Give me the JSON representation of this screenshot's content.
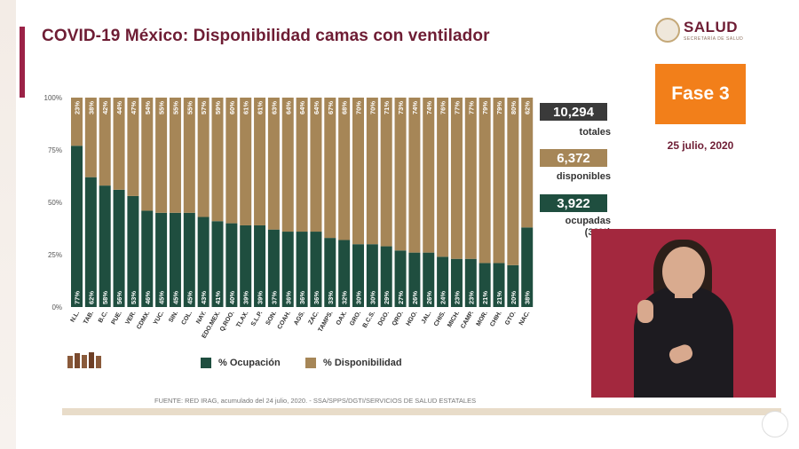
{
  "header": {
    "title": "COVID-19 México: Disponibilidad camas con ventilador"
  },
  "logo": {
    "name": "SALUD",
    "subtitle": "SECRETARÍA DE SALUD",
    "icon": "government-seal-icon"
  },
  "fase": {
    "label": "Fase 3",
    "color": "#f27f1a"
  },
  "date": "25 julio, 2020",
  "stats": {
    "totales": {
      "value": "10,294",
      "label": "totales",
      "color": "#3a3a3a"
    },
    "disponibles": {
      "value": "6,372",
      "label": "disponibles",
      "color": "#a68657"
    },
    "ocupadas": {
      "value": "3,922",
      "label": "ocupadas",
      "pct": "(38%)",
      "color": "#1f4e3f"
    }
  },
  "footer": {
    "source": "FUENTE: RED IRAG, acumulado del 24 julio, 2020.  -  SSA/SPPS/DGTI/SERVICIOS DE SALUD ESTATALES"
  },
  "colors": {
    "ocupacion": "#1f4e3f",
    "disponibilidad": "#a68657",
    "accent": "#6e1d34"
  },
  "chart_data": {
    "type": "bar",
    "stacked": true,
    "categories": [
      "N.L.",
      "TAB.",
      "B.C.",
      "PUE.",
      "VER.",
      "CDMX.",
      "YUC.",
      "SIN.",
      "COL.",
      "NAY.",
      "EDO.MEX.",
      "Q.ROO.",
      "TLAX.",
      "S.L.P.",
      "SON.",
      "COAH.",
      "AGS.",
      "ZAC.",
      "TAMPS.",
      "OAX.",
      "GRO.",
      "B.C.S.",
      "DGO.",
      "QRO.",
      "HGO.",
      "JAL.",
      "CHIS.",
      "MICH.",
      "CAMP.",
      "MOR.",
      "CHIH.",
      "GTO.",
      "NAC."
    ],
    "series": [
      {
        "name": "% Ocupación",
        "values": [
          77,
          62,
          58,
          56,
          53,
          46,
          45,
          45,
          45,
          43,
          41,
          40,
          39,
          39,
          37,
          36,
          36,
          36,
          33,
          32,
          30,
          30,
          29,
          27,
          26,
          26,
          24,
          23,
          23,
          21,
          21,
          20,
          38
        ]
      },
      {
        "name": "% Disponibilidad",
        "values": [
          23,
          38,
          42,
          44,
          47,
          54,
          55,
          55,
          55,
          57,
          59,
          60,
          61,
          61,
          63,
          64,
          64,
          64,
          67,
          68,
          70,
          70,
          71,
          73,
          74,
          74,
          76,
          77,
          77,
          79,
          79,
          80,
          62
        ]
      }
    ],
    "ytick_labels": [
      "0%",
      "25%",
      "50%",
      "75%",
      "100%"
    ],
    "ylim": [
      0,
      100
    ],
    "legend": "bottom"
  }
}
